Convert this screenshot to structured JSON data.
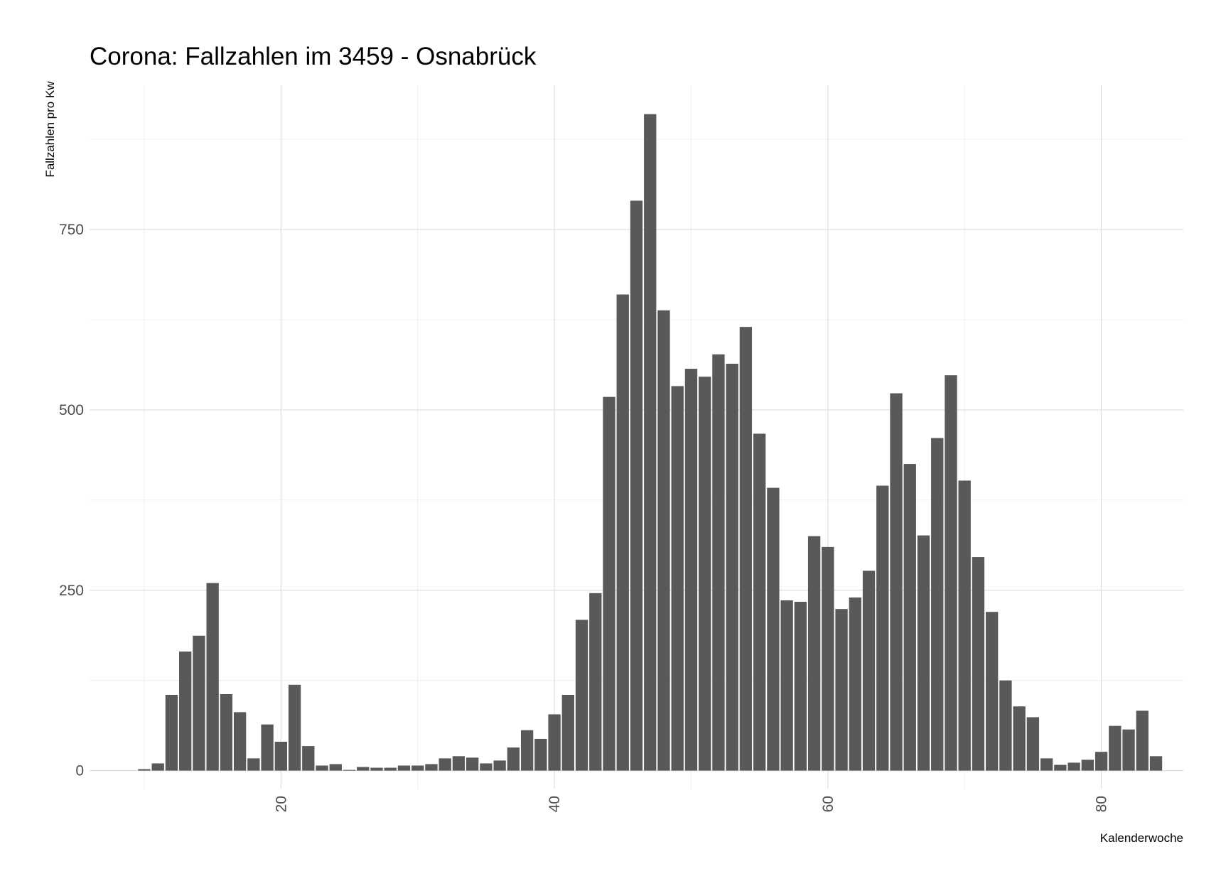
{
  "chart_data": {
    "type": "bar",
    "title": "Corona: Fallzahlen im 3459 - Osnabrück",
    "xlabel": "Kalenderwoche",
    "ylabel": "Fallzahlen pro Kw",
    "xlim": [
      6,
      86
    ],
    "ylim": [
      -25,
      950
    ],
    "x_ticks": [
      20,
      40,
      60,
      80
    ],
    "y_ticks": [
      0,
      250,
      500,
      750
    ],
    "grid": true,
    "bar_color": "#595959",
    "x": [
      10,
      11,
      12,
      13,
      14,
      15,
      16,
      17,
      18,
      19,
      20,
      21,
      22,
      23,
      24,
      25,
      26,
      27,
      28,
      29,
      30,
      31,
      32,
      33,
      34,
      35,
      36,
      37,
      38,
      39,
      40,
      41,
      42,
      43,
      44,
      45,
      46,
      47,
      48,
      49,
      50,
      51,
      52,
      53,
      54,
      55,
      56,
      57,
      58,
      59,
      60,
      61,
      62,
      63,
      64,
      65,
      66,
      67,
      68,
      69,
      70,
      71,
      72,
      73,
      74,
      75,
      76,
      77,
      78,
      79,
      80,
      81,
      82,
      83,
      84
    ],
    "values": [
      2,
      10,
      105,
      165,
      187,
      260,
      106,
      81,
      17,
      64,
      40,
      119,
      34,
      7,
      9,
      1,
      5,
      4,
      4,
      7,
      7,
      9,
      17,
      20,
      18,
      10,
      14,
      32,
      56,
      44,
      78,
      105,
      209,
      246,
      518,
      660,
      790,
      910,
      638,
      533,
      557,
      546,
      577,
      564,
      615,
      467,
      392,
      236,
      234,
      325,
      310,
      224,
      240,
      277,
      395,
      523,
      425,
      326,
      461,
      548,
      402,
      296,
      220,
      125,
      89,
      74,
      17,
      8,
      11,
      15,
      26,
      62,
      57,
      83,
      20
    ]
  }
}
